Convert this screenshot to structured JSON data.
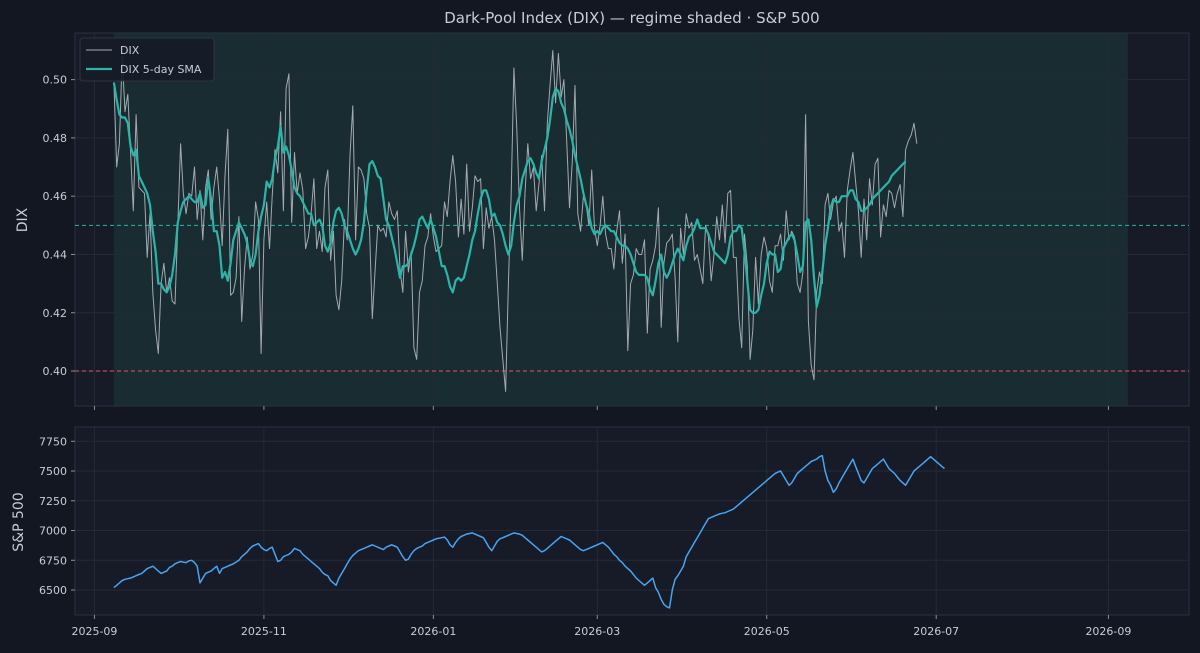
{
  "chart_data": [
    {
      "type": "line",
      "title": "Dark-Pool Index (DIX) — regime shaded · S&P 500",
      "ylabel": "DIX",
      "xlim": [
        "2025-08-25",
        "2026-09-30"
      ],
      "ylim": [
        0.388,
        0.516
      ],
      "yticks": [
        0.4,
        0.42,
        0.44,
        0.46,
        0.48,
        0.5
      ],
      "ytick_labels": [
        "0.40",
        "0.42",
        "0.44",
        "0.46",
        "0.48",
        "0.50"
      ],
      "grid": true,
      "legend": {
        "position": "top-left",
        "entries": [
          "DIX",
          "DIX 5-day SMA"
        ]
      },
      "regime_shade": {
        "start": "2025-09-08",
        "end": "2026-09-08",
        "color": "#1d3a3c"
      },
      "reference_lines": [
        {
          "y": 0.45,
          "color": "#2bb5a8",
          "style": "dashed"
        },
        {
          "y": 0.4,
          "color": "#e05a5a",
          "style": "dashed"
        }
      ],
      "series": [
        {
          "name": "DIX",
          "color": "#a5a9b0",
          "x_start": "2025-09-08",
          "step_days": 1,
          "values": [
            0.499,
            0.47,
            0.478,
            0.508,
            0.489,
            0.495,
            0.475,
            0.455,
            0.488,
            0.463,
            0.462,
            0.461,
            0.439,
            0.454,
            0.427,
            0.414,
            0.406,
            0.43,
            0.437,
            0.427,
            0.432,
            0.424,
            0.423,
            0.45,
            0.478,
            0.461,
            0.454,
            0.461,
            0.46,
            0.47,
            0.452,
            0.462,
            0.445,
            0.463,
            0.469,
            0.452,
            0.463,
            0.47,
            0.459,
            0.443,
            0.467,
            0.483,
            0.426,
            0.427,
            0.432,
            0.453,
            0.417,
            0.435,
            0.446,
            0.435,
            0.44,
            0.458,
            0.452,
            0.406,
            0.445,
            0.458,
            0.442,
            0.46,
            0.476,
            0.468,
            0.489,
            0.455,
            0.497,
            0.502,
            0.451,
            0.475,
            0.461,
            0.468,
            0.462,
            0.442,
            0.446,
            0.454,
            0.466,
            0.442,
            0.448,
            0.441,
            0.463,
            0.469,
            0.438,
            0.448,
            0.426,
            0.421,
            0.431,
            0.452,
            0.445,
            0.474,
            0.491,
            0.445,
            0.47,
            0.469,
            0.466,
            0.454,
            0.449,
            0.418,
            0.434,
            0.45,
            0.448,
            0.449,
            0.446,
            0.458,
            0.454,
            0.452,
            0.455,
            0.435,
            0.427,
            0.448,
            0.434,
            0.441,
            0.408,
            0.404,
            0.427,
            0.431,
            0.443,
            0.446,
            0.454,
            0.446,
            0.441,
            0.442,
            0.443,
            0.458,
            0.453,
            0.465,
            0.474,
            0.465,
            0.446,
            0.459,
            0.447,
            0.471,
            0.448,
            0.456,
            0.467,
            0.465,
            0.466,
            0.442,
            0.456,
            0.449,
            0.453,
            0.445,
            0.43,
            0.415,
            0.404,
            0.393,
            0.43,
            0.461,
            0.504,
            0.484,
            0.456,
            0.438,
            0.461,
            0.478,
            0.466,
            0.47,
            0.455,
            0.464,
            0.474,
            0.455,
            0.485,
            0.498,
            0.51,
            0.492,
            0.509,
            0.494,
            0.5,
            0.479,
            0.456,
            0.472,
            0.498,
            0.454,
            0.448,
            0.46,
            0.457,
            0.45,
            0.469,
            0.449,
            0.443,
            0.45,
            0.46,
            0.447,
            0.442,
            0.442,
            0.435,
            0.448,
            0.455,
            0.437,
            0.447,
            0.407,
            0.43,
            0.433,
            0.442,
            0.44,
            0.44,
            0.445,
            0.413,
            0.435,
            0.438,
            0.443,
            0.456,
            0.415,
            0.437,
            0.444,
            0.445,
            0.447,
            0.432,
            0.41,
            0.449,
            0.44,
            0.454,
            0.449,
            0.451,
            0.438,
            0.44,
            0.435,
            0.43,
            0.45,
            0.446,
            0.431,
            0.44,
            0.453,
            0.445,
            0.457,
            0.444,
            0.461,
            0.462,
            0.439,
            0.439,
            0.418,
            0.408,
            0.447,
            0.436,
            0.404,
            0.414,
            0.439,
            0.423,
            0.44,
            0.446,
            0.442,
            0.431,
            0.427,
            0.443,
            0.443,
            0.447,
            0.438,
            0.455,
            0.445,
            0.448,
            0.446,
            0.43,
            0.427,
            0.434,
            0.488,
            0.417,
            0.402,
            0.397,
            0.427,
            0.434,
            0.43,
            0.457,
            0.461,
            0.452,
            0.458,
            0.46,
            0.448,
            0.451,
            0.439,
            0.462,
            0.469,
            0.475,
            0.465,
            0.455,
            0.439,
            0.459,
            0.445,
            0.466,
            0.457,
            0.471,
            0.473,
            0.446,
            0.457,
            0.453,
            0.462,
            0.461,
            0.456,
            0.461,
            0.464,
            0.453,
            0.476,
            0.479,
            0.481,
            0.485,
            0.478
          ]
        },
        {
          "name": "DIX 5-day SMA",
          "color": "#2bb5a8",
          "x_start": "2025-09-08",
          "step_days": 1,
          "values": [
            0.499,
            0.493,
            0.488,
            0.487,
            0.487,
            0.485,
            0.477,
            0.474,
            0.476,
            0.467,
            0.465,
            0.463,
            0.461,
            0.457,
            0.448,
            0.441,
            0.43,
            0.43,
            0.428,
            0.427,
            0.429,
            0.433,
            0.44,
            0.451,
            0.455,
            0.458,
            0.459,
            0.46,
            0.459,
            0.458,
            0.458,
            0.461,
            0.456,
            0.457,
            0.466,
            0.459,
            0.448,
            0.448,
            0.443,
            0.432,
            0.434,
            0.431,
            0.437,
            0.445,
            0.448,
            0.451,
            0.449,
            0.447,
            0.444,
            0.438,
            0.436,
            0.44,
            0.448,
            0.453,
            0.457,
            0.465,
            0.463,
            0.466,
            0.473,
            0.477,
            0.484,
            0.475,
            0.477,
            0.474,
            0.469,
            0.463,
            0.461,
            0.46,
            0.458,
            0.456,
            0.454,
            0.454,
            0.45,
            0.451,
            0.452,
            0.45,
            0.443,
            0.441,
            0.444,
            0.451,
            0.455,
            0.456,
            0.454,
            0.45,
            0.448,
            0.445,
            0.442,
            0.44,
            0.442,
            0.445,
            0.451,
            0.462,
            0.471,
            0.472,
            0.47,
            0.467,
            0.466,
            0.459,
            0.452,
            0.45,
            0.446,
            0.442,
            0.437,
            0.432,
            0.436,
            0.436,
            0.437,
            0.44,
            0.443,
            0.447,
            0.452,
            0.453,
            0.451,
            0.449,
            0.452,
            0.449,
            0.446,
            0.441,
            0.436,
            0.436,
            0.433,
            0.429,
            0.427,
            0.431,
            0.432,
            0.431,
            0.432,
            0.436,
            0.44,
            0.445,
            0.448,
            0.454,
            0.459,
            0.462,
            0.462,
            0.459,
            0.453,
            0.454,
            0.451,
            0.45,
            0.447,
            0.443,
            0.44,
            0.443,
            0.451,
            0.457,
            0.46,
            0.466,
            0.469,
            0.472,
            0.473,
            0.471,
            0.468,
            0.466,
            0.472,
            0.476,
            0.48,
            0.486,
            0.494,
            0.497,
            0.496,
            0.492,
            0.49,
            0.486,
            0.483,
            0.479,
            0.474,
            0.47,
            0.466,
            0.461,
            0.457,
            0.454,
            0.449,
            0.447,
            0.448,
            0.447,
            0.449,
            0.45,
            0.449,
            0.448,
            0.448,
            0.446,
            0.444,
            0.443,
            0.443,
            0.442,
            0.44,
            0.437,
            0.434,
            0.433,
            0.433,
            0.433,
            0.432,
            0.428,
            0.426,
            0.431,
            0.437,
            0.44,
            0.434,
            0.432,
            0.434,
            0.437,
            0.44,
            0.442,
            0.44,
            0.438,
            0.443,
            0.446,
            0.447,
            0.449,
            0.452,
            0.449,
            0.449,
            0.449,
            0.447,
            0.444,
            0.441,
            0.44,
            0.439,
            0.438,
            0.437,
            0.44,
            0.446,
            0.448,
            0.448,
            0.45,
            0.449,
            0.441,
            0.431,
            0.421,
            0.42,
            0.42,
            0.421,
            0.426,
            0.43,
            0.437,
            0.441,
            0.44,
            0.44,
            0.434,
            0.435,
            0.442,
            0.444,
            0.446,
            0.447,
            0.445,
            0.44,
            0.434,
            0.436,
            0.451,
            0.452,
            0.445,
            0.432,
            0.422,
            0.426,
            0.434,
            0.443,
            0.449,
            0.456,
            0.459,
            0.458,
            0.458,
            0.46,
            0.46,
            0.46,
            0.462,
            0.462,
            0.459,
            0.458,
            0.455,
            0.455,
            0.456,
            0.457,
            0.459,
            0.46,
            0.461,
            0.462,
            0.463,
            0.464,
            0.465,
            0.467,
            0.468,
            0.469,
            0.47,
            0.471,
            0.472
          ]
        }
      ]
    },
    {
      "type": "line",
      "ylabel": "S&P 500",
      "xlim": [
        "2025-08-25",
        "2026-09-30"
      ],
      "ylim": [
        6290,
        7870
      ],
      "yticks": [
        6500,
        6750,
        7000,
        7250,
        7500,
        7750
      ],
      "ytick_labels": [
        "6500",
        "6750",
        "7000",
        "7250",
        "7500",
        "7750"
      ],
      "xtick_dates": [
        "2025-09-01",
        "2025-11-01",
        "2026-01-01",
        "2026-03-01",
        "2026-05-01",
        "2026-07-01",
        "2026-09-01"
      ],
      "xtick_labels": [
        "2025-09",
        "2025-11",
        "2026-01",
        "2026-03",
        "2026-05",
        "2026-07",
        "2026-09"
      ],
      "grid": true,
      "series": [
        {
          "name": "S&P 500",
          "color": "#4aa3f0",
          "x_start": "2025-09-08",
          "step_days": 1,
          "values": [
            6520,
            6540,
            6560,
            6580,
            6590,
            6595,
            6600,
            6610,
            6620,
            6630,
            6640,
            6660,
            6680,
            6690,
            6700,
            6680,
            6660,
            6640,
            6650,
            6660,
            6690,
            6700,
            6720,
            6730,
            6740,
            6735,
            6730,
            6745,
            6750,
            6730,
            6700,
            6560,
            6600,
            6640,
            6650,
            6660,
            6680,
            6700,
            6640,
            6680,
            6690,
            6700,
            6710,
            6720,
            6735,
            6750,
            6780,
            6800,
            6820,
            6850,
            6870,
            6880,
            6890,
            6860,
            6840,
            6830,
            6850,
            6860,
            6800,
            6740,
            6750,
            6780,
            6790,
            6800,
            6820,
            6850,
            6840,
            6830,
            6800,
            6780,
            6760,
            6740,
            6720,
            6700,
            6680,
            6650,
            6630,
            6620,
            6580,
            6560,
            6540,
            6600,
            6640,
            6680,
            6720,
            6760,
            6790,
            6810,
            6830,
            6840,
            6850,
            6860,
            6870,
            6880,
            6870,
            6860,
            6850,
            6840,
            6860,
            6870,
            6880,
            6870,
            6860,
            6820,
            6780,
            6750,
            6760,
            6800,
            6830,
            6850,
            6860,
            6870,
            6890,
            6900,
            6910,
            6920,
            6930,
            6935,
            6940,
            6945,
            6920,
            6880,
            6860,
            6900,
            6930,
            6950,
            6960,
            6970,
            6975,
            6980,
            6970,
            6960,
            6950,
            6940,
            6900,
            6860,
            6830,
            6870,
            6910,
            6930,
            6940,
            6950,
            6960,
            6970,
            6980,
            6975,
            6970,
            6960,
            6940,
            6920,
            6900,
            6880,
            6860,
            6840,
            6820,
            6830,
            6850,
            6870,
            6890,
            6910,
            6930,
            6950,
            6940,
            6930,
            6920,
            6900,
            6880,
            6860,
            6840,
            6830,
            6840,
            6850,
            6860,
            6870,
            6880,
            6890,
            6900,
            6880,
            6860,
            6830,
            6800,
            6780,
            6750,
            6730,
            6700,
            6680,
            6660,
            6630,
            6600,
            6580,
            6560,
            6540,
            6560,
            6580,
            6600,
            6520,
            6480,
            6420,
            6380,
            6360,
            6350,
            6500,
            6590,
            6620,
            6660,
            6700,
            6780,
            6820,
            6860,
            6900,
            6940,
            6980,
            7020,
            7060,
            7100,
            7110,
            7120,
            7130,
            7140,
            7145,
            7150,
            7160,
            7170,
            7180,
            7200,
            7220,
            7240,
            7260,
            7280,
            7300,
            7320,
            7340,
            7360,
            7380,
            7400,
            7420,
            7440,
            7460,
            7480,
            7490,
            7500,
            7460,
            7420,
            7380,
            7400,
            7440,
            7480,
            7500,
            7520,
            7540,
            7560,
            7580,
            7590,
            7600,
            7620,
            7630,
            7500,
            7420,
            7380,
            7320,
            7350,
            7400,
            7440,
            7480,
            7520,
            7560,
            7600,
            7540,
            7480,
            7420,
            7400,
            7440,
            7480,
            7520,
            7540,
            7560,
            7580,
            7600,
            7560,
            7520,
            7500,
            7480,
            7450,
            7420,
            7400,
            7380,
            7420,
            7460,
            7500,
            7520,
            7540,
            7560,
            7580,
            7600,
            7620,
            7600,
            7580,
            7560,
            7540,
            7520
          ]
        }
      ]
    }
  ]
}
